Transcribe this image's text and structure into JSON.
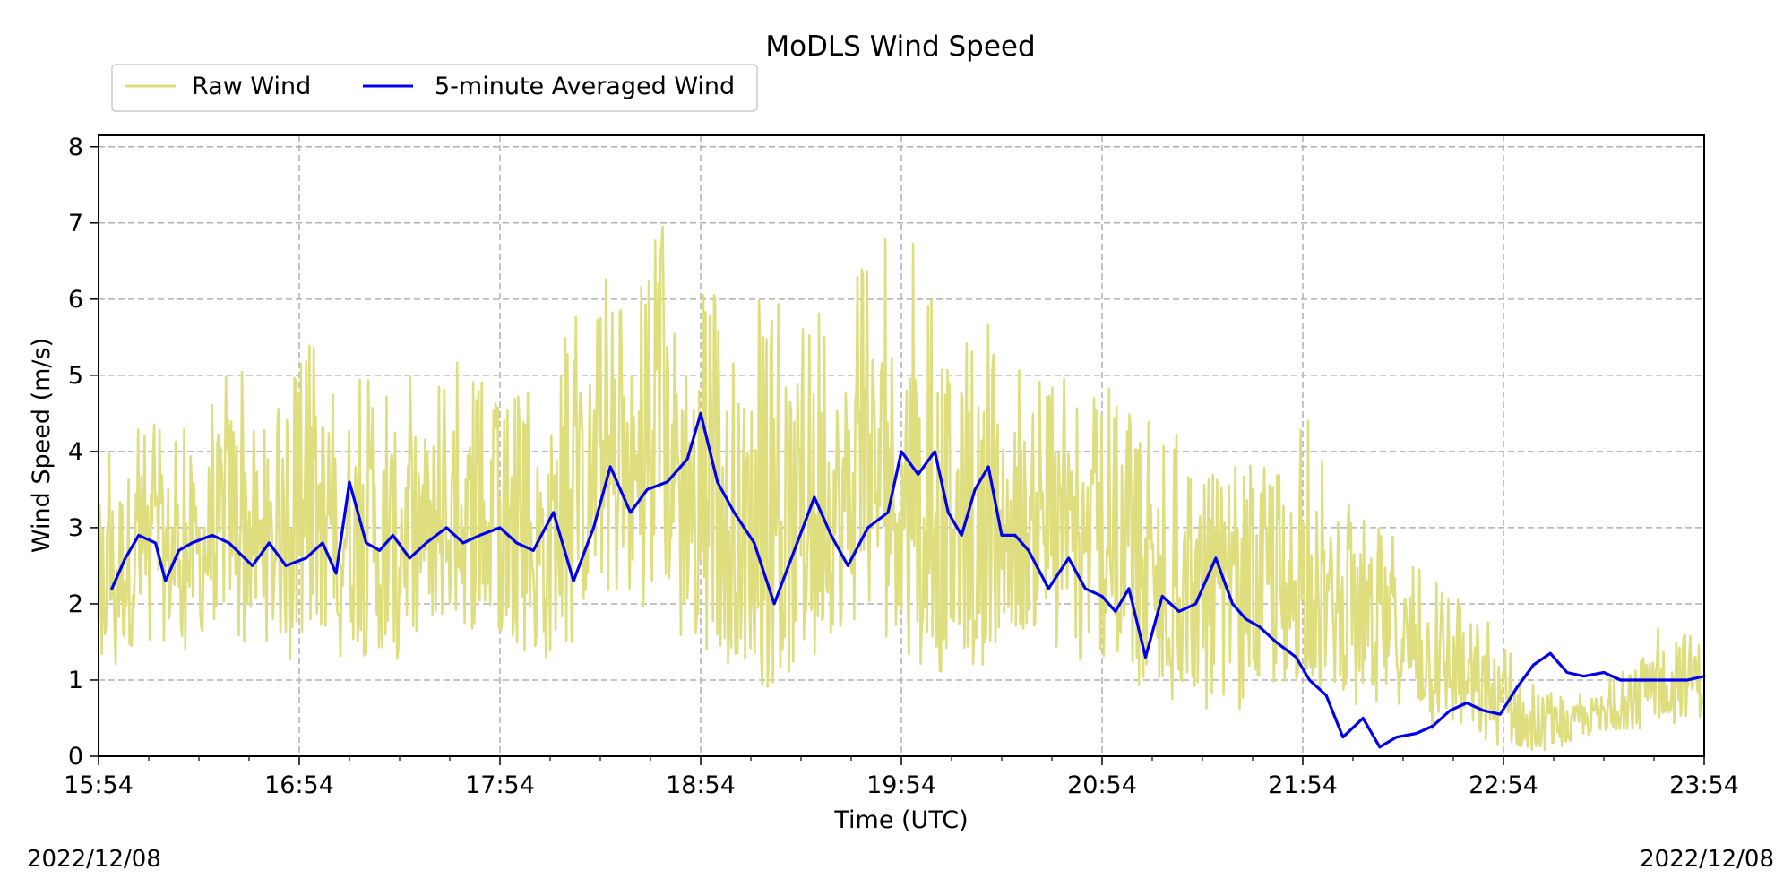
{
  "chart_data": {
    "type": "line",
    "title": "MoDLS Wind Speed",
    "xlabel": "Time (UTC)",
    "ylabel": "Wind Speed (m/s)",
    "x_tick_labels": [
      "15:54",
      "16:54",
      "17:54",
      "18:54",
      "19:54",
      "20:54",
      "21:54",
      "22:54",
      "23:54"
    ],
    "y_tick_labels": [
      "0",
      "1",
      "2",
      "3",
      "4",
      "5",
      "6",
      "7",
      "8"
    ],
    "xlim": [
      "15:54",
      "23:54"
    ],
    "ylim": [
      0,
      8.15
    ],
    "grid": true,
    "legend_position": "top-left",
    "series": [
      {
        "name": "Raw Wind",
        "color": "#dede7f",
        "style": "noisy line",
        "x": [
          "15:54",
          "16:04",
          "16:14",
          "16:24",
          "16:34",
          "16:44",
          "16:54",
          "17:04",
          "17:14",
          "17:24",
          "17:34",
          "17:44",
          "17:54",
          "18:04",
          "18:14",
          "18:24",
          "18:34",
          "18:44",
          "18:54",
          "19:04",
          "19:14",
          "19:24",
          "19:34",
          "19:44",
          "19:54",
          "20:04",
          "20:14",
          "20:24",
          "20:34",
          "20:44",
          "20:54",
          "21:04",
          "21:14",
          "21:24",
          "21:34",
          "21:44",
          "21:54",
          "22:04",
          "22:14",
          "22:24",
          "22:34",
          "22:44",
          "22:54",
          "23:04",
          "23:14",
          "23:24",
          "23:34",
          "23:44",
          "23:54"
        ],
        "low": [
          0.9,
          1.2,
          1.3,
          1.4,
          1.6,
          1.3,
          1.2,
          1.4,
          1.0,
          1.2,
          1.5,
          1.4,
          1.3,
          1.2,
          1.4,
          1.8,
          1.6,
          1.7,
          1.2,
          1.0,
          0.9,
          1.2,
          1.3,
          1.4,
          1.3,
          1.0,
          1.0,
          1.3,
          1.4,
          1.2,
          1.0,
          0.8,
          0.7,
          0.6,
          0.5,
          0.6,
          0.7,
          0.7,
          0.6,
          0.5,
          0.3,
          0.1,
          0.0,
          0.0,
          0.1,
          0.3,
          0.3,
          0.4,
          0.4
        ],
        "high": [
          4.0,
          4.6,
          4.4,
          4.3,
          5.6,
          4.3,
          5.2,
          5.9,
          5.0,
          5.2,
          5.1,
          5.3,
          4.7,
          4.8,
          5.6,
          6.3,
          6.2,
          7.2,
          6.3,
          5.8,
          6.1,
          6.0,
          5.9,
          6.8,
          6.8,
          6.6,
          5.9,
          5.5,
          5.0,
          5.0,
          5.0,
          4.5,
          4.4,
          3.9,
          3.8,
          3.9,
          4.6,
          3.4,
          3.3,
          2.9,
          2.5,
          2.0,
          1.6,
          0.9,
          0.8,
          1.0,
          1.2,
          2.2,
          1.8
        ]
      },
      {
        "name": "5-minute Averaged Wind",
        "color": "#0000ee",
        "style": "smooth line",
        "x": [
          "15:58",
          "16:02",
          "16:06",
          "16:11",
          "16:14",
          "16:18",
          "16:22",
          "16:28",
          "16:33",
          "16:40",
          "16:45",
          "16:50",
          "16:56",
          "17:01",
          "17:05",
          "17:09",
          "17:14",
          "17:18",
          "17:22",
          "17:27",
          "17:32",
          "17:38",
          "17:43",
          "17:48",
          "17:54",
          "17:59",
          "18:04",
          "18:10",
          "18:16",
          "18:22",
          "18:27",
          "18:33",
          "18:38",
          "18:44",
          "18:50",
          "18:54",
          "18:59",
          "19:04",
          "19:10",
          "19:16",
          "19:22",
          "19:28",
          "19:33",
          "19:38",
          "19:44",
          "19:50",
          "19:54",
          "19:59",
          "20:04",
          "20:08",
          "20:12",
          "20:16",
          "20:20",
          "20:24",
          "20:28",
          "20:32",
          "20:38",
          "20:44",
          "20:49",
          "20:54",
          "20:58",
          "21:02",
          "21:07",
          "21:12",
          "21:17",
          "21:22",
          "21:28",
          "21:33",
          "21:37",
          "21:41",
          "21:46",
          "21:52",
          "21:56",
          "22:01",
          "22:06",
          "22:12",
          "22:17",
          "22:22",
          "22:28",
          "22:33",
          "22:38",
          "22:43",
          "22:48",
          "22:53",
          "22:58",
          "23:03",
          "23:08",
          "23:13",
          "23:18",
          "23:24",
          "23:29",
          "23:34",
          "23:39",
          "23:44",
          "23:49",
          "23:54"
        ],
        "y": [
          2.2,
          2.6,
          2.9,
          2.8,
          2.3,
          2.7,
          2.8,
          2.9,
          2.8,
          2.5,
          2.8,
          2.5,
          2.6,
          2.8,
          2.4,
          3.6,
          2.8,
          2.7,
          2.9,
          2.6,
          2.8,
          3.0,
          2.8,
          2.9,
          3.0,
          2.8,
          2.7,
          3.2,
          2.3,
          3.0,
          3.8,
          3.2,
          3.5,
          3.6,
          3.9,
          4.5,
          3.6,
          3.2,
          2.8,
          2.0,
          2.7,
          3.4,
          2.9,
          2.5,
          3.0,
          3.2,
          4.0,
          3.7,
          4.0,
          3.2,
          2.9,
          3.5,
          3.8,
          2.9,
          2.9,
          2.7,
          2.2,
          2.6,
          2.2,
          2.1,
          1.9,
          2.2,
          1.3,
          2.1,
          1.9,
          2.0,
          2.6,
          2.0,
          1.8,
          1.7,
          1.5,
          1.3,
          1.0,
          0.8,
          0.25,
          0.5,
          0.12,
          0.25,
          0.3,
          0.4,
          0.6,
          0.7,
          0.6,
          0.55,
          0.9,
          1.2,
          1.35,
          1.1,
          1.05,
          1.1,
          1.0,
          1.0,
          1.0,
          1.0,
          1.0,
          1.05
        ]
      }
    ]
  },
  "footer": {
    "date_left": "2022/12/08",
    "date_right": "2022/12/08"
  }
}
